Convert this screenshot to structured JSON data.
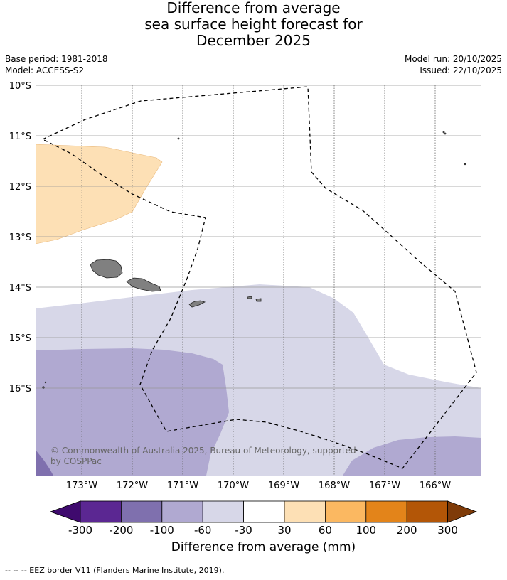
{
  "title": {
    "line1": "Difference from average",
    "line2": "sea surface height forecast for",
    "line3": "December 2025"
  },
  "meta": {
    "base_period": "Base period: 1981-2018",
    "model": "Model: ACCESS-S2",
    "model_run": "Model run: 20/10/2025",
    "issued": "Issued: 22/10/2025"
  },
  "map": {
    "lat_labels": [
      "10°S",
      "11°S",
      "12°S",
      "13°S",
      "14°S",
      "15°S",
      "16°S"
    ],
    "lon_labels": [
      "173°W",
      "172°W",
      "171°W",
      "170°W",
      "169°W",
      "168°W",
      "167°W",
      "166°W"
    ],
    "copyright": "© Commonwealth of Australia 2025, Bureau of Meteorology, supported by COSPPac"
  },
  "colorbar": {
    "title": "Difference from average (mm)",
    "ticks": [
      "-300",
      "-200",
      "-100",
      "-60",
      "-30",
      "30",
      "60",
      "100",
      "200",
      "300"
    ],
    "colors": [
      "#3f0a6e",
      "#5b2792",
      "#7f70ae",
      "#b0a9d1",
      "#d7d7e8",
      "#ffffff",
      "#fde0b5",
      "#fbb861",
      "#e3841a",
      "#b35607",
      "#7f3b08"
    ]
  },
  "footnote": "--  --  -- EEZ border V11 (Flanders Marine Institute, 2019)."
}
